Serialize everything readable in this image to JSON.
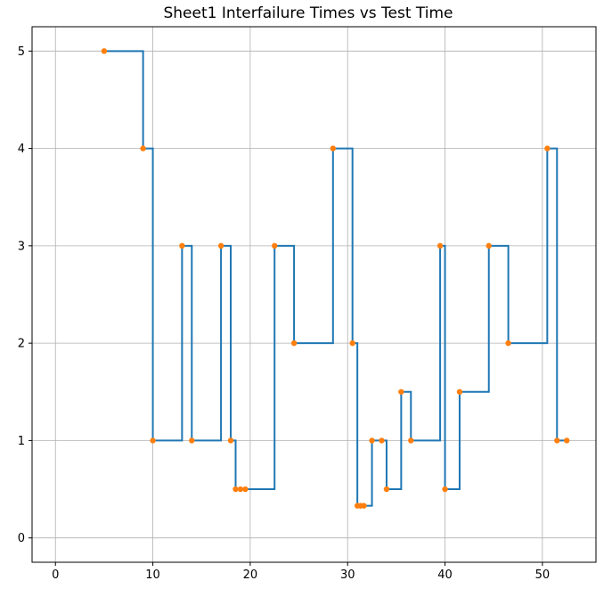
{
  "chart_data": {
    "type": "line",
    "title": "Sheet1 Interfailure Times vs Test Time",
    "xlabel": "",
    "ylabel": "",
    "xlim": [
      -2.4,
      55.5
    ],
    "ylim": [
      -0.25,
      5.25
    ],
    "xticks": [
      0,
      10,
      20,
      30,
      40,
      50
    ],
    "yticks": [
      0,
      1,
      2,
      3,
      4,
      5
    ],
    "grid": true,
    "legend": "none",
    "colors": {
      "step_line": "#1f77b4",
      "markers": "#ff7f0e",
      "grid": "#b0b0b0"
    },
    "series": [
      {
        "style": "step-post",
        "x": [
          5,
          9,
          10,
          13,
          14,
          17,
          18,
          18.5,
          19,
          19.5,
          22.5,
          24.5,
          28.5,
          30.5,
          31,
          31.33,
          31.67,
          32.5,
          33.5,
          34,
          35.5,
          36.5,
          39.5,
          40,
          41.5,
          44.5,
          46.5,
          50.5,
          51.5,
          52.5
        ],
        "y": [
          5,
          4,
          1,
          3,
          1,
          3,
          1,
          0.5,
          0.5,
          0.5,
          3,
          2,
          4,
          2,
          0.33,
          0.33,
          0.33,
          1,
          1,
          0.5,
          1.5,
          1,
          3,
          0.5,
          1.5,
          3,
          2,
          4,
          1,
          1
        ]
      }
    ]
  }
}
